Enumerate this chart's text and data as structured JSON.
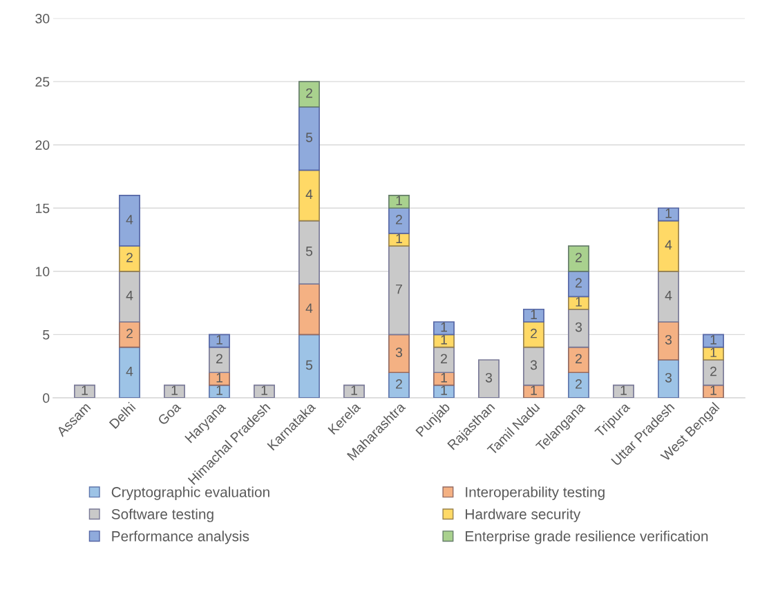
{
  "chart_data": {
    "type": "bar",
    "stacked": true,
    "categories": [
      "Assam",
      "Delhi",
      "Goa",
      "Haryana",
      "Himachal Pradesh",
      "Karnataka",
      "Kerela",
      "Maharashtra",
      "Punjab",
      "Rajasthan",
      "Tamil Nadu",
      "Telangana",
      "Tripura",
      "Uttar Pradesh",
      "West Bengal"
    ],
    "series": [
      {
        "name": "Cryptographic evaluation",
        "color": "#9dc3e6",
        "values": [
          null,
          4,
          null,
          1,
          null,
          5,
          null,
          2,
          1,
          null,
          null,
          2,
          null,
          3,
          null
        ]
      },
      {
        "name": "Interoperability testing",
        "color": "#f4b183",
        "values": [
          null,
          2,
          null,
          1,
          null,
          4,
          null,
          3,
          1,
          null,
          1,
          2,
          null,
          3,
          1
        ]
      },
      {
        "name": "Software testing",
        "color": "#c9c9c9",
        "values": [
          1,
          4,
          1,
          2,
          1,
          5,
          1,
          7,
          2,
          3,
          3,
          3,
          1,
          4,
          2
        ]
      },
      {
        "name": "Hardware security",
        "color": "#ffd966",
        "values": [
          null,
          2,
          null,
          null,
          null,
          4,
          null,
          1,
          1,
          null,
          2,
          1,
          null,
          4,
          1
        ]
      },
      {
        "name": "Performance analysis",
        "color": "#8faadc",
        "values": [
          null,
          4,
          null,
          1,
          null,
          5,
          null,
          2,
          1,
          null,
          1,
          2,
          null,
          1,
          1
        ]
      },
      {
        "name": "Enterprise grade resilience verification",
        "color": "#a9d18e",
        "values": [
          null,
          null,
          null,
          null,
          null,
          2,
          null,
          1,
          null,
          null,
          null,
          2,
          null,
          null,
          null
        ]
      }
    ],
    "ylim": [
      0,
      30
    ],
    "yticks": [
      0,
      5,
      10,
      15,
      20,
      25,
      30
    ],
    "grid": "y",
    "legend": "bottom",
    "data_labels": true
  }
}
